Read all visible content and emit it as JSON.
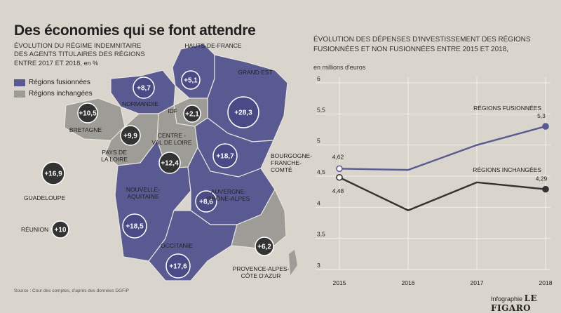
{
  "title": "Des économies qui se font attendre",
  "map": {
    "subtitle_lines": [
      "ÉVOLUTION DU RÉGIME INDEMNITAIRE",
      "DES AGENTS TITULAIRES DES RÉGIONS"
    ],
    "subtitle_last": "ENTRE 2017 ET 2018,",
    "unit": "en %",
    "legend": [
      {
        "label": "Régions fusionnées",
        "color": "#5a5a93"
      },
      {
        "label": "Régions inchangées",
        "color": "#9e9c97"
      }
    ],
    "source": "Source : Cour des comptes, d'après des données DGFiP",
    "regions": [
      {
        "key": "hdf",
        "name_lines": [
          "HAUTS-DE-FRANCE"
        ],
        "value": "+5,1",
        "merged": true
      },
      {
        "key": "normandie",
        "name_lines": [
          "NORMANDIE"
        ],
        "value": "+8,7",
        "merged": true
      },
      {
        "key": "ge",
        "name_lines": [
          "GRAND EST"
        ],
        "value": "+28,3",
        "merged": true
      },
      {
        "key": "idf",
        "name_lines": [
          "IDF"
        ],
        "value": "+2,1",
        "merged": false
      },
      {
        "key": "bretagne",
        "name_lines": [
          "BRETAGNE"
        ],
        "value": "+10,5",
        "merged": false
      },
      {
        "key": "pdl",
        "name_lines": [
          "PAYS DE",
          "LA LOIRE"
        ],
        "value": "+9,9",
        "merged": false
      },
      {
        "key": "cvl",
        "name_lines": [
          "CENTRE -",
          "VAL DE LOIRE"
        ],
        "value": "+12,4",
        "merged": false
      },
      {
        "key": "bfc",
        "name_lines": [
          "BOURGOGNE-",
          "FRANCHE-",
          "COMTÉ"
        ],
        "value": "+18,7",
        "merged": true
      },
      {
        "key": "na",
        "name_lines": [
          "NOUVELLE-",
          "AQUITAINE"
        ],
        "value": "+18,5",
        "merged": true
      },
      {
        "key": "ara",
        "name_lines": [
          "AUVERGNE-",
          "RHÔNE-ALPES"
        ],
        "value": "+8,6",
        "merged": true
      },
      {
        "key": "occ",
        "name_lines": [
          "OCCITANIE"
        ],
        "value": "+17,6",
        "merged": true
      },
      {
        "key": "paca",
        "name_lines": [
          "PROVENCE-ALPES-",
          "CÔTE D'AZUR"
        ],
        "value": "+6,2",
        "merged": false
      },
      {
        "key": "guad",
        "name_lines": [
          "GUADELOUPE"
        ],
        "value": "+16,9",
        "merged": false
      },
      {
        "key": "reun",
        "name_lines": [
          "RÉUNION"
        ],
        "value": "+10",
        "merged": false
      }
    ]
  },
  "chart_data": {
    "type": "line",
    "title_lines": [
      "ÉVOLUTION DES DÉPENSES D'INVESTISSEMENT DES RÉGIONS",
      "FUSIONNÉES ET NON FUSIONNÉES ENTRE 2015 ET 2018,"
    ],
    "ylabel": "en millions d'euros",
    "x": [
      2015,
      2016,
      2017,
      2018
    ],
    "ylim": [
      3,
      6
    ],
    "yticks": [
      3,
      3.5,
      4,
      4.5,
      5,
      5.5,
      6
    ],
    "ytick_labels": [
      "3",
      "3,5",
      "4",
      "4,5",
      "5",
      "5,5",
      "6"
    ],
    "grid": true,
    "series": [
      {
        "name": "RÉGIONS FUSIONNÉES",
        "values": [
          4.62,
          4.6,
          5.0,
          5.3
        ],
        "labels": [
          "4,62",
          null,
          null,
          "5,3"
        ],
        "color": "#5a5a93"
      },
      {
        "name": "RÉGIONS INCHANGÉES",
        "values": [
          4.48,
          3.95,
          4.4,
          4.29
        ],
        "labels": [
          "4,48",
          null,
          null,
          "4,29"
        ],
        "color": "#333333"
      }
    ]
  },
  "brand": {
    "prefix": "Infographie",
    "name": "LE FIGARO"
  }
}
